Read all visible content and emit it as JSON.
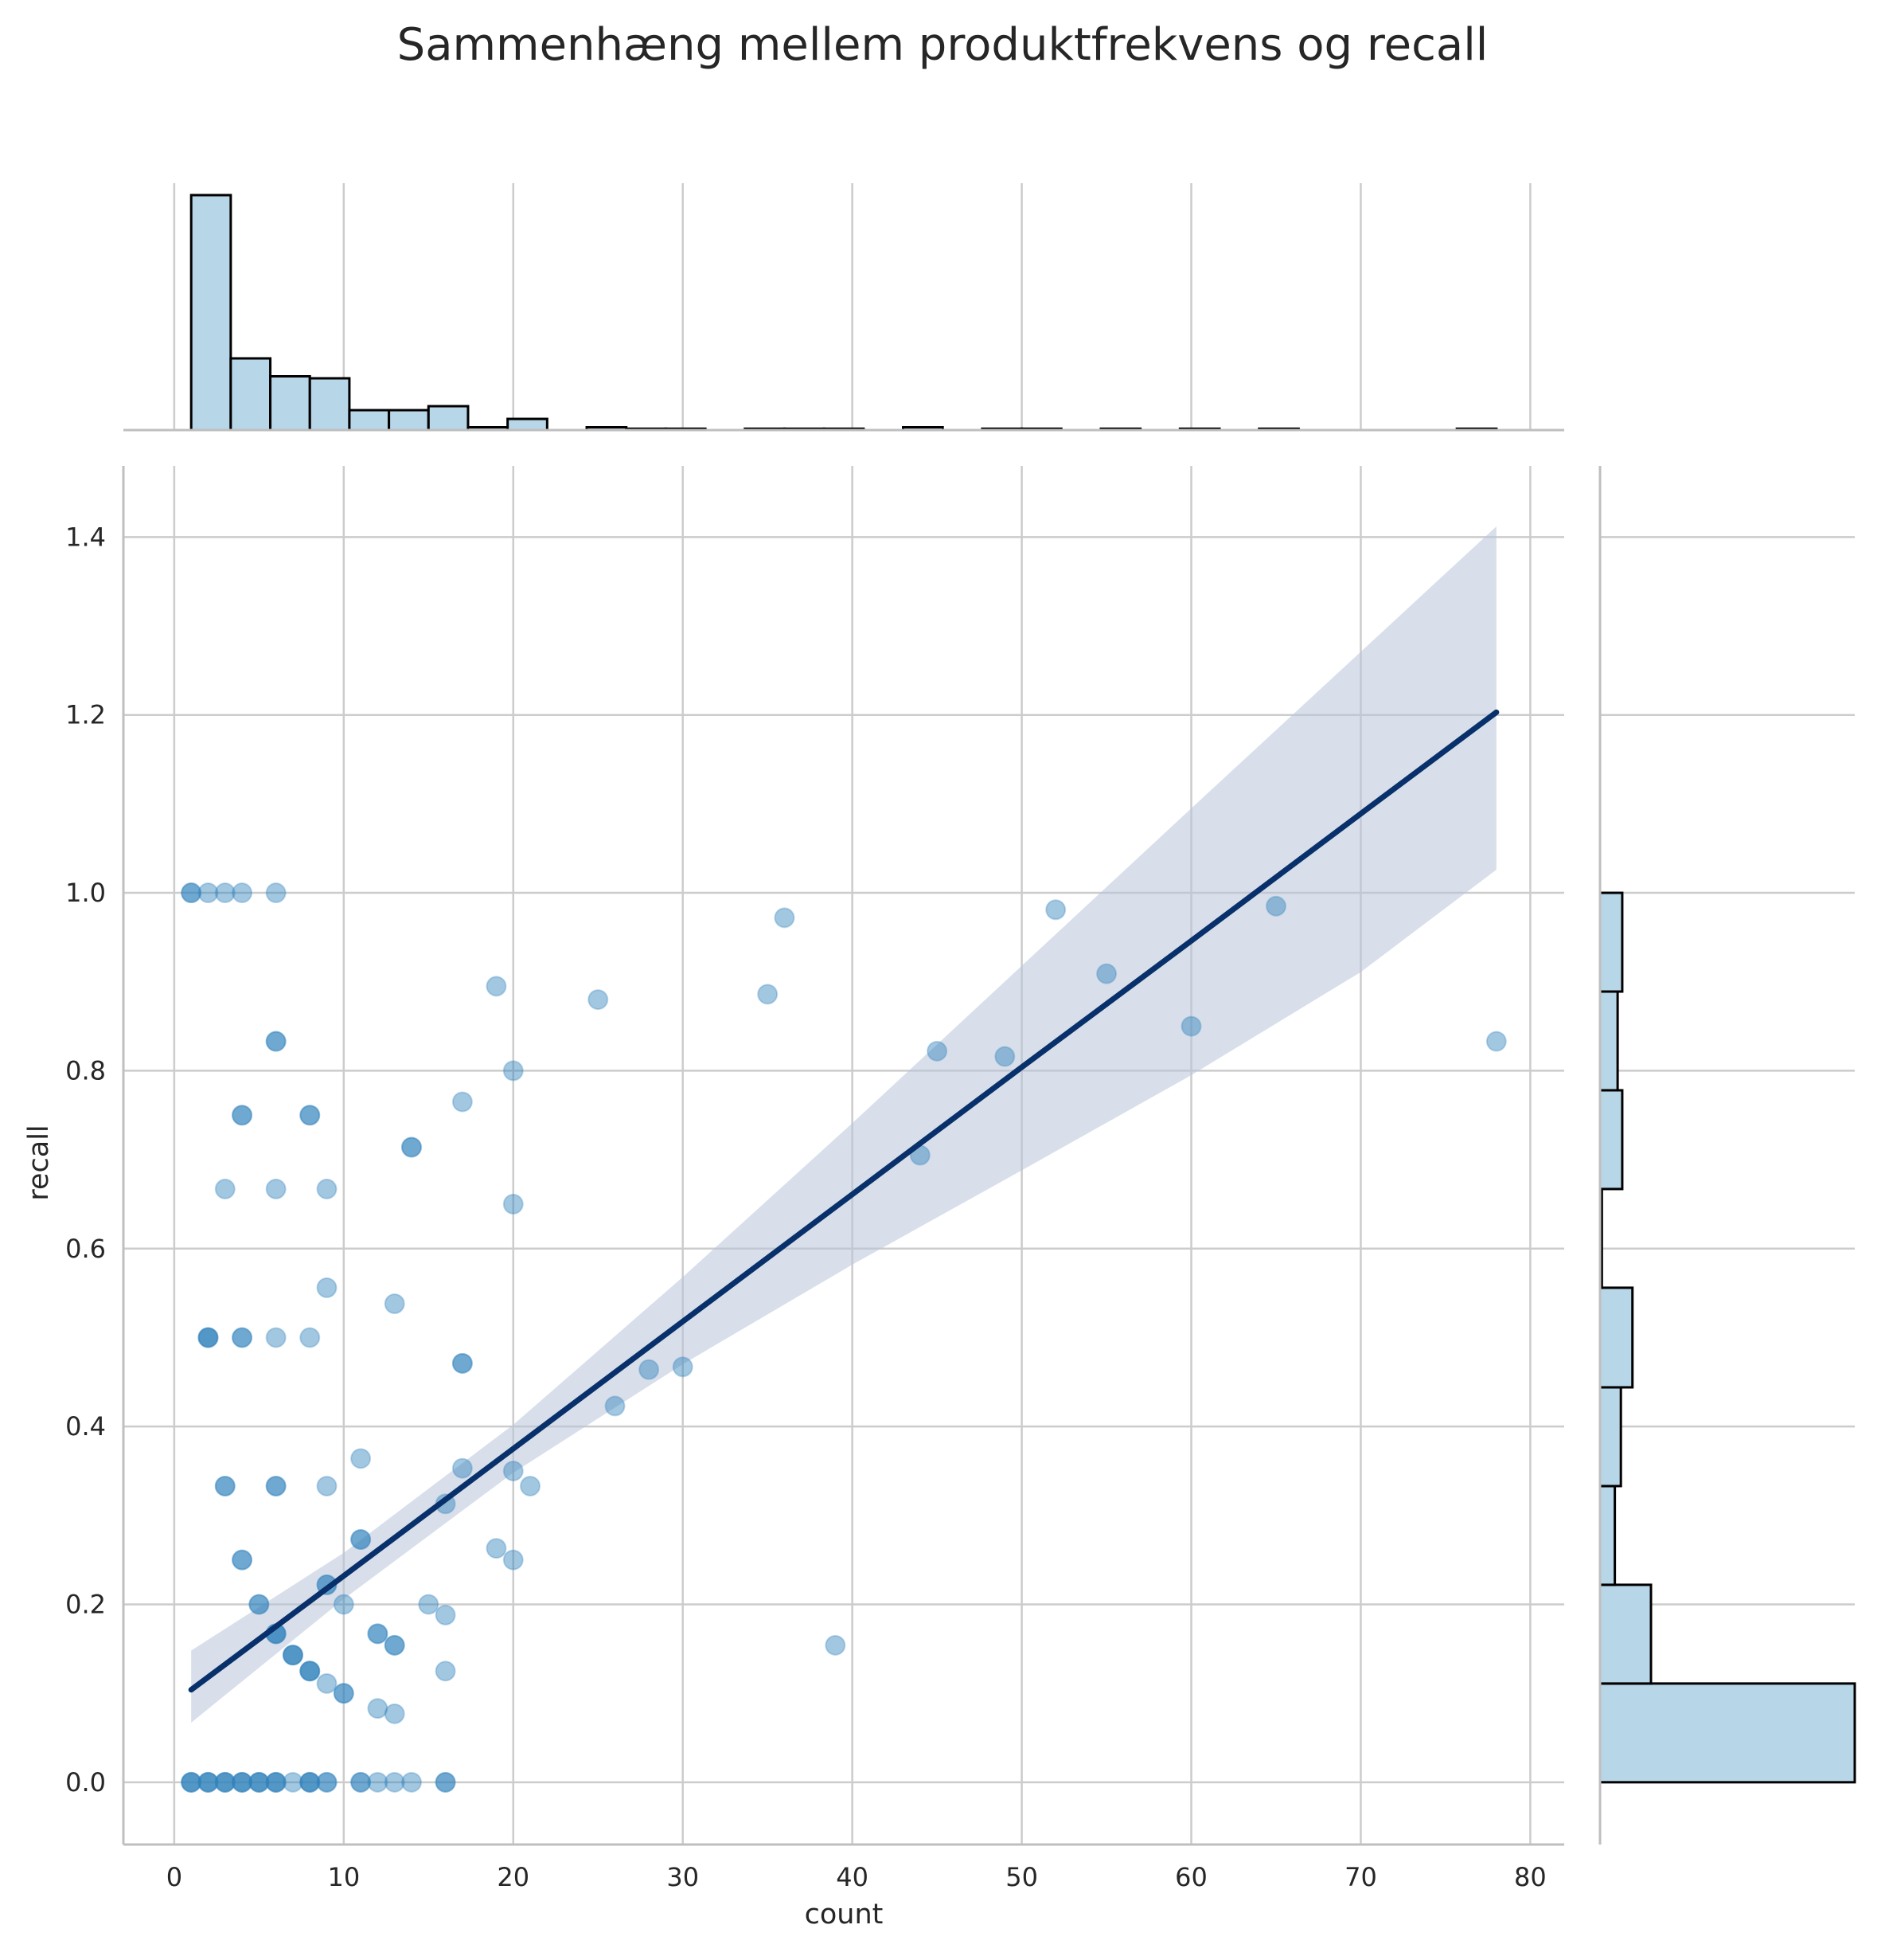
{
  "chart_data": {
    "type": "scatter",
    "title": "Sammenhæng mellem produktfrekvens og recall",
    "xlabel": "count",
    "ylabel": "recall",
    "xlim": [
      -3,
      82
    ],
    "ylim": [
      -0.07,
      1.48
    ],
    "xticks": [
      0,
      10,
      20,
      30,
      40,
      50,
      60,
      70,
      80
    ],
    "xtick_labels": [
      "0",
      "10",
      "20",
      "30",
      "40",
      "50",
      "60",
      "70",
      "80"
    ],
    "yticks": [
      0.0,
      0.2,
      0.4,
      0.6,
      0.8,
      1.0,
      1.2,
      1.4
    ],
    "ytick_labels": [
      "0.0",
      "0.2",
      "0.4",
      "0.6",
      "0.8",
      "1.0",
      "1.2",
      "1.4"
    ],
    "grid": true,
    "colors": {
      "points": "#3182bd",
      "regression_line": "#08306b",
      "confidence_band": "#b8c4d8",
      "histogram_fill": "#b7d6e8",
      "histogram_edge": "#000000",
      "grid": "#cccccc",
      "spine": "#bfbfbf"
    },
    "points": [
      {
        "x": 1,
        "y": 1.0
      },
      {
        "x": 1,
        "y": 1.0
      },
      {
        "x": 2,
        "y": 1.0
      },
      {
        "x": 3,
        "y": 1.0
      },
      {
        "x": 4,
        "y": 1.0
      },
      {
        "x": 6,
        "y": 1.0
      },
      {
        "x": 6,
        "y": 0.833
      },
      {
        "x": 6,
        "y": 0.833
      },
      {
        "x": 4,
        "y": 0.75
      },
      {
        "x": 4,
        "y": 0.75
      },
      {
        "x": 8,
        "y": 0.75
      },
      {
        "x": 8,
        "y": 0.75
      },
      {
        "x": 3,
        "y": 0.667
      },
      {
        "x": 6,
        "y": 0.667
      },
      {
        "x": 9,
        "y": 0.667
      },
      {
        "x": 9,
        "y": 0.556
      },
      {
        "x": 2,
        "y": 0.5
      },
      {
        "x": 2,
        "y": 0.5
      },
      {
        "x": 2,
        "y": 0.5
      },
      {
        "x": 4,
        "y": 0.5
      },
      {
        "x": 4,
        "y": 0.5
      },
      {
        "x": 6,
        "y": 0.5
      },
      {
        "x": 8,
        "y": 0.5
      },
      {
        "x": 3,
        "y": 0.333
      },
      {
        "x": 3,
        "y": 0.333
      },
      {
        "x": 6,
        "y": 0.333
      },
      {
        "x": 6,
        "y": 0.333
      },
      {
        "x": 9,
        "y": 0.333
      },
      {
        "x": 4,
        "y": 0.25
      },
      {
        "x": 4,
        "y": 0.25
      },
      {
        "x": 5,
        "y": 0.2
      },
      {
        "x": 5,
        "y": 0.2
      },
      {
        "x": 10,
        "y": 0.2
      },
      {
        "x": 9,
        "y": 0.222
      },
      {
        "x": 9,
        "y": 0.222
      },
      {
        "x": 6,
        "y": 0.167
      },
      {
        "x": 6,
        "y": 0.167
      },
      {
        "x": 6,
        "y": 0.167
      },
      {
        "x": 7,
        "y": 0.143
      },
      {
        "x": 7,
        "y": 0.143
      },
      {
        "x": 7,
        "y": 0.143
      },
      {
        "x": 8,
        "y": 0.125
      },
      {
        "x": 8,
        "y": 0.125
      },
      {
        "x": 8,
        "y": 0.125
      },
      {
        "x": 9,
        "y": 0.111
      },
      {
        "x": 10,
        "y": 0.1
      },
      {
        "x": 10,
        "y": 0.1
      },
      {
        "x": 11,
        "y": 0.364
      },
      {
        "x": 11,
        "y": 0.273
      },
      {
        "x": 11,
        "y": 0.273
      },
      {
        "x": 12,
        "y": 0.167
      },
      {
        "x": 12,
        "y": 0.167
      },
      {
        "x": 12,
        "y": 0.083
      },
      {
        "x": 13,
        "y": 0.538
      },
      {
        "x": 13,
        "y": 0.154
      },
      {
        "x": 13,
        "y": 0.154
      },
      {
        "x": 13,
        "y": 0.077
      },
      {
        "x": 14,
        "y": 0.714
      },
      {
        "x": 14,
        "y": 0.714
      },
      {
        "x": 15,
        "y": 0.2
      },
      {
        "x": 16,
        "y": 0.313
      },
      {
        "x": 16,
        "y": 0.188
      },
      {
        "x": 16,
        "y": 0.125
      },
      {
        "x": 17,
        "y": 0.765
      },
      {
        "x": 17,
        "y": 0.471
      },
      {
        "x": 17,
        "y": 0.471
      },
      {
        "x": 17,
        "y": 0.353
      },
      {
        "x": 19,
        "y": 0.895
      },
      {
        "x": 19,
        "y": 0.263
      },
      {
        "x": 20,
        "y": 0.8
      },
      {
        "x": 20,
        "y": 0.65
      },
      {
        "x": 20,
        "y": 0.35
      },
      {
        "x": 20,
        "y": 0.25
      },
      {
        "x": 21,
        "y": 0.333
      },
      {
        "x": 25,
        "y": 0.88
      },
      {
        "x": 26,
        "y": 0.423
      },
      {
        "x": 28,
        "y": 0.464
      },
      {
        "x": 30,
        "y": 0.467
      },
      {
        "x": 35,
        "y": 0.886
      },
      {
        "x": 36,
        "y": 0.972
      },
      {
        "x": 39,
        "y": 0.154
      },
      {
        "x": 44,
        "y": 0.705
      },
      {
        "x": 45,
        "y": 0.822
      },
      {
        "x": 49,
        "y": 0.816
      },
      {
        "x": 52,
        "y": 0.981
      },
      {
        "x": 55,
        "y": 0.909
      },
      {
        "x": 60,
        "y": 0.85
      },
      {
        "x": 65,
        "y": 0.985
      },
      {
        "x": 78,
        "y": 0.833
      },
      {
        "x": 1,
        "y": 0
      },
      {
        "x": 1,
        "y": 0
      },
      {
        "x": 1,
        "y": 0
      },
      {
        "x": 2,
        "y": 0
      },
      {
        "x": 2,
        "y": 0
      },
      {
        "x": 2,
        "y": 0
      },
      {
        "x": 3,
        "y": 0
      },
      {
        "x": 3,
        "y": 0
      },
      {
        "x": 3,
        "y": 0
      },
      {
        "x": 4,
        "y": 0
      },
      {
        "x": 4,
        "y": 0
      },
      {
        "x": 4,
        "y": 0
      },
      {
        "x": 5,
        "y": 0
      },
      {
        "x": 5,
        "y": 0
      },
      {
        "x": 5,
        "y": 0
      },
      {
        "x": 6,
        "y": 0
      },
      {
        "x": 6,
        "y": 0
      },
      {
        "x": 6,
        "y": 0
      },
      {
        "x": 7,
        "y": 0
      },
      {
        "x": 8,
        "y": 0
      },
      {
        "x": 8,
        "y": 0
      },
      {
        "x": 8,
        "y": 0
      },
      {
        "x": 9,
        "y": 0
      },
      {
        "x": 9,
        "y": 0
      },
      {
        "x": 11,
        "y": 0
      },
      {
        "x": 11,
        "y": 0
      },
      {
        "x": 12,
        "y": 0
      },
      {
        "x": 13,
        "y": 0
      },
      {
        "x": 14,
        "y": 0
      },
      {
        "x": 16,
        "y": 0
      },
      {
        "x": 16,
        "y": 0
      }
    ],
    "regression": {
      "x": [
        1,
        10,
        20,
        30,
        40,
        50,
        60,
        70,
        78
      ],
      "y": [
        0.104,
        0.232,
        0.375,
        0.518,
        0.661,
        0.804,
        0.946,
        1.089,
        1.203
      ],
      "ci_lower": [
        0.067,
        0.206,
        0.348,
        0.47,
        0.582,
        0.688,
        0.795,
        0.911,
        1.026
      ],
      "ci_upper": [
        0.148,
        0.258,
        0.402,
        0.568,
        0.741,
        0.918,
        1.095,
        1.271,
        1.412
      ]
    },
    "x_histogram": {
      "bin_edges": [
        1,
        3.333,
        5.667,
        8,
        10.333,
        12.667,
        15,
        17.333,
        19.667,
        22,
        24.333,
        26.667,
        29,
        31.333,
        33.667,
        36,
        38.333,
        40.667,
        43,
        45.333,
        47.667,
        50,
        52.333,
        54.667,
        57,
        59.333,
        61.667,
        64,
        66.333,
        68.667,
        71,
        73.333,
        75.667,
        78
      ],
      "counts": [
        59,
        18,
        13.5,
        13,
        5,
        5,
        6,
        0.7,
        2.8,
        0,
        0.7,
        0.35,
        0.35,
        0,
        0.35,
        0.35,
        0.35,
        0,
        0.7,
        0,
        0.35,
        0.35,
        0,
        0.35,
        0,
        0.35,
        0,
        0.35,
        0,
        0,
        0,
        0,
        0.35
      ]
    },
    "y_histogram": {
      "bin_edges": [
        0.0,
        0.111,
        0.222,
        0.333,
        0.444,
        0.556,
        0.667,
        0.778,
        0.889,
        1.0
      ],
      "counts": [
        55,
        11,
        3.2,
        4.5,
        7,
        0.4,
        4.8,
        3.8,
        4.8
      ]
    }
  }
}
